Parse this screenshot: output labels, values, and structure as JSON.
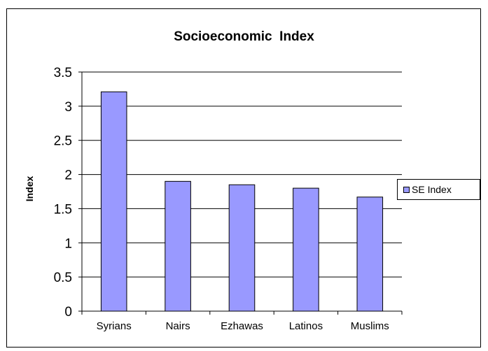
{
  "chart_data": {
    "type": "bar",
    "title": "Socioeconomic  Index",
    "xlabel": "",
    "ylabel": "Index",
    "categories": [
      "Syrians",
      "Nairs",
      "Ezhawas",
      "Latinos",
      "Muslims"
    ],
    "series": [
      {
        "name": "SE Index",
        "values": [
          3.21,
          1.9,
          1.85,
          1.8,
          1.67
        ],
        "color": "#9999ff"
      }
    ],
    "ylim": [
      0,
      3.5
    ],
    "yticks": [
      "0",
      "0.5",
      "1",
      "1.5",
      "2",
      "2.5",
      "3",
      "3.5"
    ],
    "grid": true,
    "legend": "right"
  }
}
